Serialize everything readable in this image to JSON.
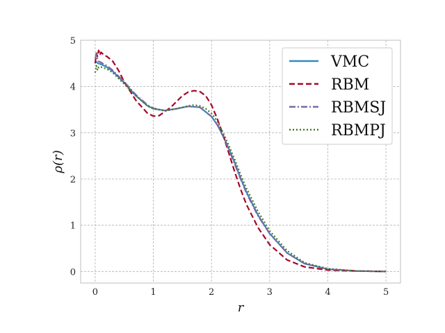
{
  "chart_data": {
    "type": "line",
    "title": "",
    "xlabel": "r",
    "ylabel": "ρ(r)",
    "xlim": [
      -0.25,
      5.25
    ],
    "ylim": [
      -0.25,
      5.0
    ],
    "xticks": [
      "0",
      "1",
      "2",
      "3",
      "4",
      "5"
    ],
    "yticks": [
      "0",
      "1",
      "2",
      "3",
      "4",
      "5"
    ],
    "grid": true,
    "legend_position": "top-right",
    "series": [
      {
        "name": "VMC",
        "color": "#348ABD",
        "dash": "solid",
        "x": [
          0.0,
          0.05,
          0.1,
          0.2,
          0.3,
          0.5,
          0.7,
          0.9,
          1.0,
          1.2,
          1.4,
          1.6,
          1.8,
          2.0,
          2.1,
          2.2,
          2.3,
          2.4,
          2.5,
          2.6,
          2.8,
          3.0,
          3.3,
          3.6,
          4.0,
          4.5,
          5.0
        ],
        "y": [
          4.55,
          4.5,
          4.48,
          4.42,
          4.33,
          4.08,
          3.8,
          3.58,
          3.52,
          3.48,
          3.52,
          3.57,
          3.55,
          3.35,
          3.17,
          2.93,
          2.65,
          2.35,
          2.02,
          1.72,
          1.22,
          0.82,
          0.4,
          0.17,
          0.05,
          0.01,
          0.0
        ]
      },
      {
        "name": "RBM",
        "color": "#A60628",
        "dash": "dashed",
        "x": [
          0.0,
          0.02,
          0.04,
          0.06,
          0.08,
          0.1,
          0.15,
          0.2,
          0.3,
          0.4,
          0.5,
          0.7,
          0.9,
          1.0,
          1.1,
          1.3,
          1.5,
          1.6,
          1.7,
          1.8,
          1.9,
          2.0,
          2.1,
          2.2,
          2.3,
          2.4,
          2.5,
          2.6,
          2.8,
          3.0,
          3.3,
          3.6,
          4.0,
          4.5,
          5.0
        ],
        "y": [
          4.5,
          4.72,
          4.65,
          4.78,
          4.68,
          4.74,
          4.68,
          4.65,
          4.55,
          4.35,
          4.1,
          3.7,
          3.42,
          3.36,
          3.37,
          3.55,
          3.8,
          3.88,
          3.91,
          3.89,
          3.8,
          3.6,
          3.3,
          2.95,
          2.55,
          2.15,
          1.78,
          1.45,
          0.95,
          0.58,
          0.25,
          0.1,
          0.03,
          0.01,
          0.0
        ]
      },
      {
        "name": "RBMSJ",
        "color": "#7A68A6",
        "dash": "dashdot",
        "x": [
          0.0,
          0.02,
          0.05,
          0.1,
          0.2,
          0.3,
          0.5,
          0.7,
          0.9,
          1.0,
          1.2,
          1.4,
          1.6,
          1.8,
          2.0,
          2.1,
          2.2,
          2.3,
          2.4,
          2.5,
          2.6,
          2.8,
          3.0,
          3.3,
          3.6,
          4.0,
          4.5,
          5.0
        ],
        "y": [
          4.6,
          4.7,
          4.55,
          4.52,
          4.45,
          4.35,
          4.1,
          3.82,
          3.6,
          3.53,
          3.48,
          3.52,
          3.57,
          3.55,
          3.35,
          3.17,
          2.92,
          2.63,
          2.32,
          2.0,
          1.7,
          1.2,
          0.82,
          0.4,
          0.17,
          0.05,
          0.01,
          0.0
        ]
      },
      {
        "name": "RBMPJ",
        "color": "#467821",
        "dash": "dotted",
        "x": [
          0.0,
          0.02,
          0.04,
          0.06,
          0.1,
          0.2,
          0.3,
          0.5,
          0.7,
          0.9,
          1.0,
          1.2,
          1.4,
          1.6,
          1.7,
          1.8,
          1.9,
          2.0,
          2.1,
          2.2,
          2.3,
          2.4,
          2.5,
          2.6,
          2.8,
          3.0,
          3.3,
          3.6,
          4.0,
          4.5,
          5.0
        ],
        "y": [
          4.3,
          4.45,
          4.35,
          4.42,
          4.42,
          4.38,
          4.3,
          4.05,
          3.8,
          3.58,
          3.52,
          3.47,
          3.52,
          3.58,
          3.6,
          3.58,
          3.52,
          3.42,
          3.25,
          3.0,
          2.72,
          2.42,
          2.1,
          1.8,
          1.3,
          0.88,
          0.45,
          0.19,
          0.06,
          0.01,
          0.0
        ]
      }
    ]
  }
}
